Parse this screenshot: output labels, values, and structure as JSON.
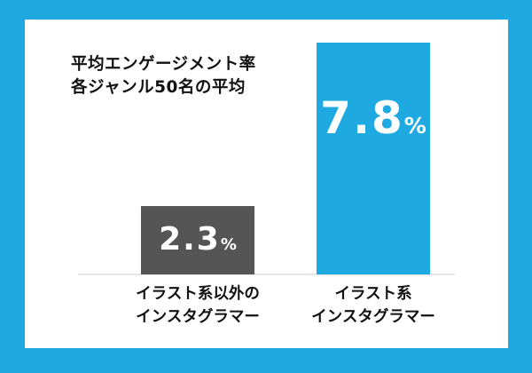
{
  "chart_data": {
    "type": "bar",
    "title_lines": [
      "平均エンゲージメント率",
      "各ジャンル50名の平均"
    ],
    "categories": [
      [
        "イラスト系以外の",
        "インスタグラマー"
      ],
      [
        "イラスト系",
        "インスタグラマー"
      ]
    ],
    "values": [
      2.3,
      7.8
    ],
    "value_labels": [
      "2.3",
      "7.8"
    ],
    "unit": "%",
    "bar_colors": [
      "#555555",
      "#1ea9e1"
    ]
  },
  "colors": {
    "background": "#1ea9e1",
    "panel": "#ffffff",
    "text": "#111111",
    "axis": "#dddddd"
  }
}
